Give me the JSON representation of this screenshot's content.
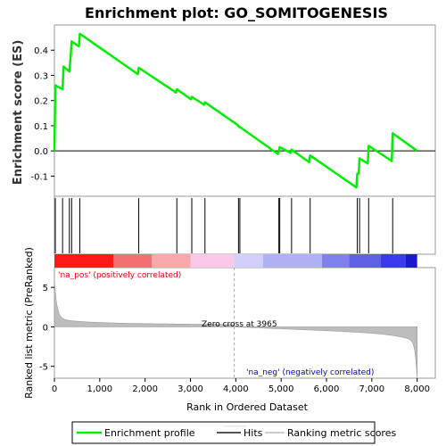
{
  "chart_data": {
    "type": "line",
    "title": "Enrichment plot: GO_SOMITOGENESIS",
    "ylabel_top": "Enrichment score (ES)",
    "ylabel_bottom": "Ranked list metric (PreRanked)",
    "xlabel": "Rank in Ordered Dataset",
    "xlim": [
      0,
      8400
    ],
    "es_ylim": [
      -0.18,
      0.5
    ],
    "es_yticks": [
      -0.1,
      0.0,
      0.1,
      0.2,
      0.3,
      0.4
    ],
    "metric_ylim": [
      -6.5,
      7.5
    ],
    "metric_yticks": [
      -5,
      0,
      5
    ],
    "xticks": [
      0,
      1000,
      2000,
      3000,
      4000,
      5000,
      6000,
      7000,
      8000
    ],
    "xtick_labels": [
      "0",
      "1,000",
      "2,000",
      "3,000",
      "4,000",
      "5,000",
      "6,000",
      "7,000",
      "8,000"
    ],
    "n_genes": 8000,
    "zero_cross_rank": 3965,
    "zero_cross_label": "Zero cross at 3965",
    "pos_label": "'na_pos' (positively correlated)",
    "neg_label": "'na_neg' (negatively correlated)",
    "hits": [
      20,
      180,
      330,
      380,
      560,
      1860,
      2700,
      3030,
      3320,
      4060,
      4090,
      4950,
      4970,
      5230,
      5640,
      6680,
      6730,
      6930,
      7460
    ],
    "es_profile": {
      "x": [
        0,
        20,
        180,
        200,
        330,
        360,
        380,
        540,
        560,
        1840,
        1860,
        2680,
        2700,
        3010,
        3030,
        3300,
        3320,
        4040,
        4060,
        4075,
        4090,
        4930,
        4950,
        4960,
        4970,
        5210,
        5230,
        5620,
        5640,
        6660,
        6680,
        6710,
        6730,
        6910,
        6930,
        7440,
        7460,
        8000
      ],
      "y": [
        0.0,
        0.26,
        0.245,
        0.335,
        0.315,
        0.38,
        0.435,
        0.415,
        0.465,
        0.305,
        0.33,
        0.232,
        0.245,
        0.205,
        0.215,
        0.183,
        0.193,
        0.103,
        0.098,
        0.095,
        0.095,
        -0.012,
        0.0,
        0.008,
        0.015,
        -0.008,
        0.005,
        -0.045,
        -0.018,
        -0.145,
        -0.09,
        -0.09,
        -0.03,
        -0.05,
        0.02,
        -0.04,
        0.07,
        0.0
      ]
    },
    "legend": [
      "Enrichment profile",
      "Hits",
      "Ranking metric scores"
    ],
    "colors": {
      "profile": "#00ee00",
      "hits": "#000000",
      "metric_fill": "#bdbdbd",
      "zero_line": "#aaaaaa",
      "pos_label": "#dd0000",
      "neg_label": "#0000cc",
      "heat": [
        "#ff1a1a",
        "#f47070",
        "#f8a8a8",
        "#fac8e8",
        "#d0d0fa",
        "#b0b0f5",
        "#8080ee",
        "#6060e6",
        "#3a3aee",
        "#1a1acc"
      ],
      "heat_stops": [
        0,
        1300,
        2150,
        3000,
        3965,
        4600,
        5900,
        6500,
        7200,
        7750,
        8000
      ]
    }
  }
}
